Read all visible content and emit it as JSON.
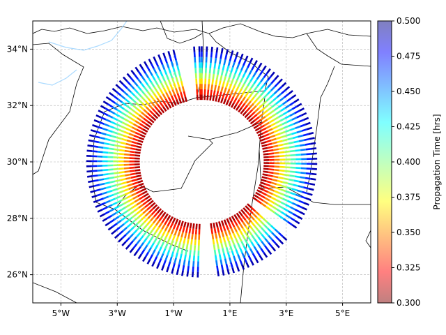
{
  "figure": {
    "colorbar_label": "Propagation Time [hrs]",
    "colorbar_ticks": [
      "0.500",
      "0.475",
      "0.450",
      "0.425",
      "0.400",
      "0.375",
      "0.350",
      "0.325",
      "0.300"
    ],
    "colorbar_range": [
      0.3,
      0.5
    ],
    "colormap": "jet",
    "colorbar_alpha": 0.5
  },
  "map": {
    "lon_range": [
      -6.0,
      6.0
    ],
    "lat_range": [
      25.0,
      35.0
    ],
    "x_ticks": [
      "5°W",
      "3°W",
      "1°W",
      "1°E",
      "3°E",
      "5°E"
    ],
    "x_tick_values": [
      -5,
      -3,
      -1,
      1,
      3,
      5
    ],
    "y_ticks": [
      "34°N",
      "32°N",
      "30°N",
      "28°N",
      "26°N"
    ],
    "y_tick_values": [
      34,
      32,
      30,
      28,
      26
    ],
    "grid": true,
    "coastline_color": "#000000",
    "river_color": "#aadaff"
  },
  "chart_data": {
    "type": "scatter",
    "description_units": "rays from a central point; color encodes propagation time in hours",
    "center": {
      "lon": 0.0,
      "lat": 30.0
    },
    "ray_inner_radius_deg": 2.2,
    "ray_outer_radius_deg": 4.1,
    "time_at_inner": 0.3,
    "time_at_outer": 0.5,
    "gaps_bearing_deg": [
      [
        -12,
        -5
      ],
      [
        125,
        132
      ],
      [
        173,
        180
      ],
      [
        308,
        315
      ]
    ]
  }
}
